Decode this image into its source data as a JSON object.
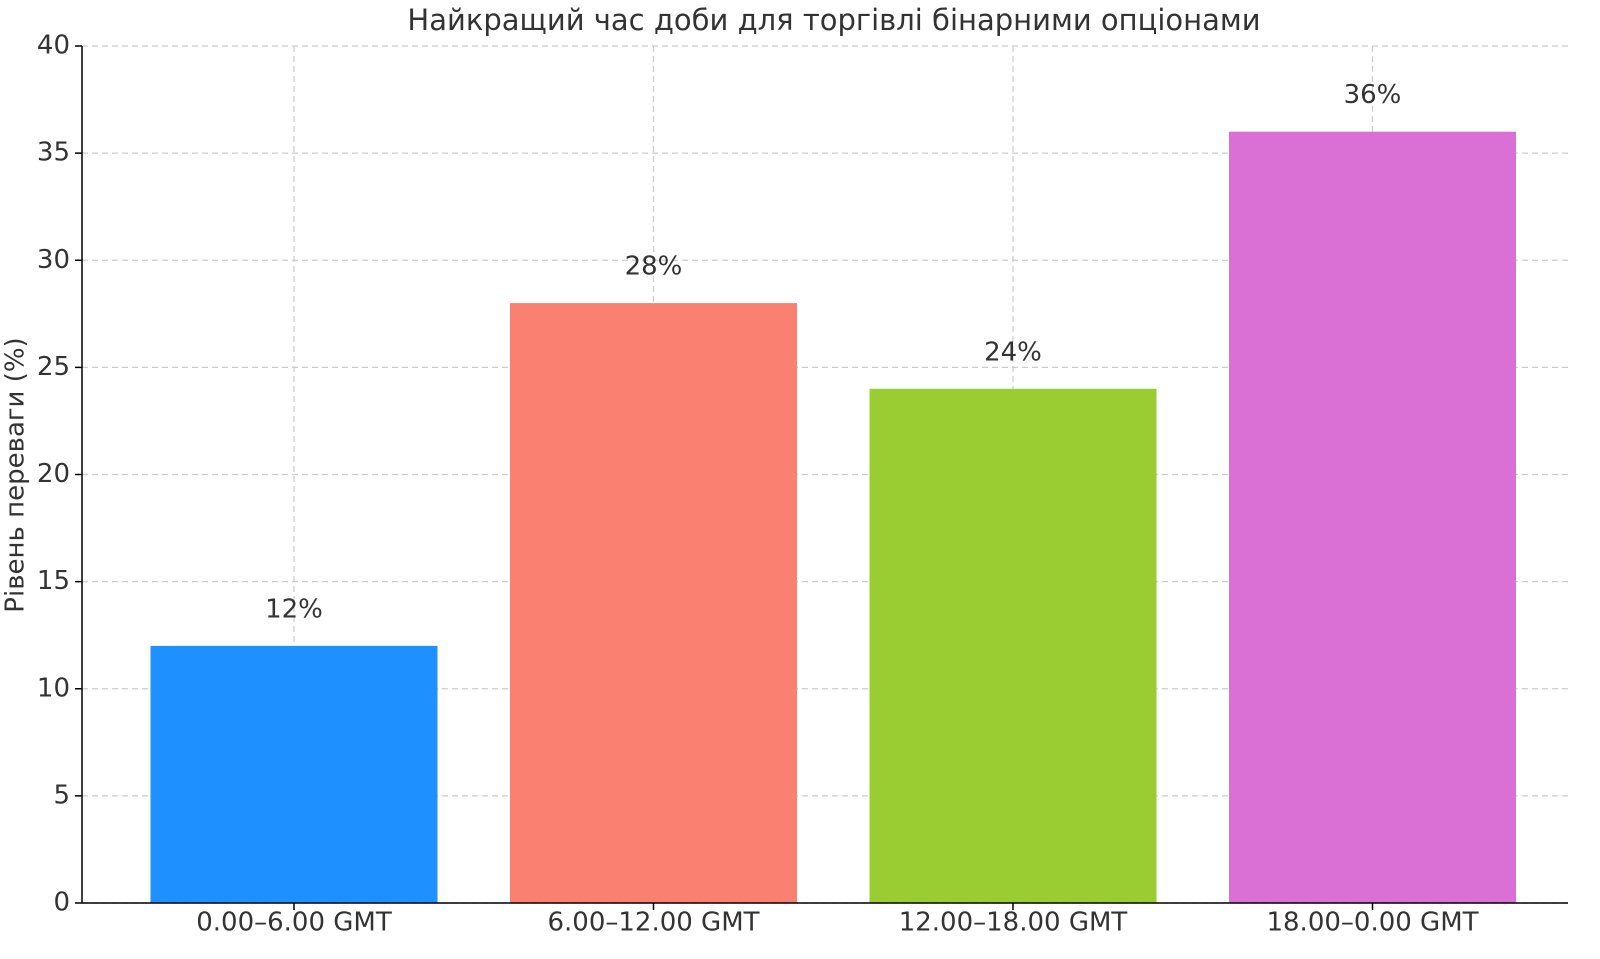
{
  "chart_data": {
    "type": "bar",
    "title": "Найкращий час доби для торгівлі бінарними опціонами",
    "y_label": "Рівень переваги (%)",
    "categories": [
      "0.00–6.00 GMT",
      "6.00–12.00 GMT",
      "12.00–18.00 GMT",
      "18.00–0.00 GMT"
    ],
    "values": [
      12,
      28,
      24,
      36
    ],
    "value_labels": [
      "12%",
      "28%",
      "24%",
      "36%"
    ],
    "colors": [
      "#1e90ff",
      "#fa8072",
      "#9acd32",
      "#da70d6"
    ],
    "ylim": [
      0,
      40
    ],
    "yticks": [
      0,
      5,
      10,
      15,
      20,
      25,
      30,
      35,
      40
    ],
    "grid": true
  }
}
